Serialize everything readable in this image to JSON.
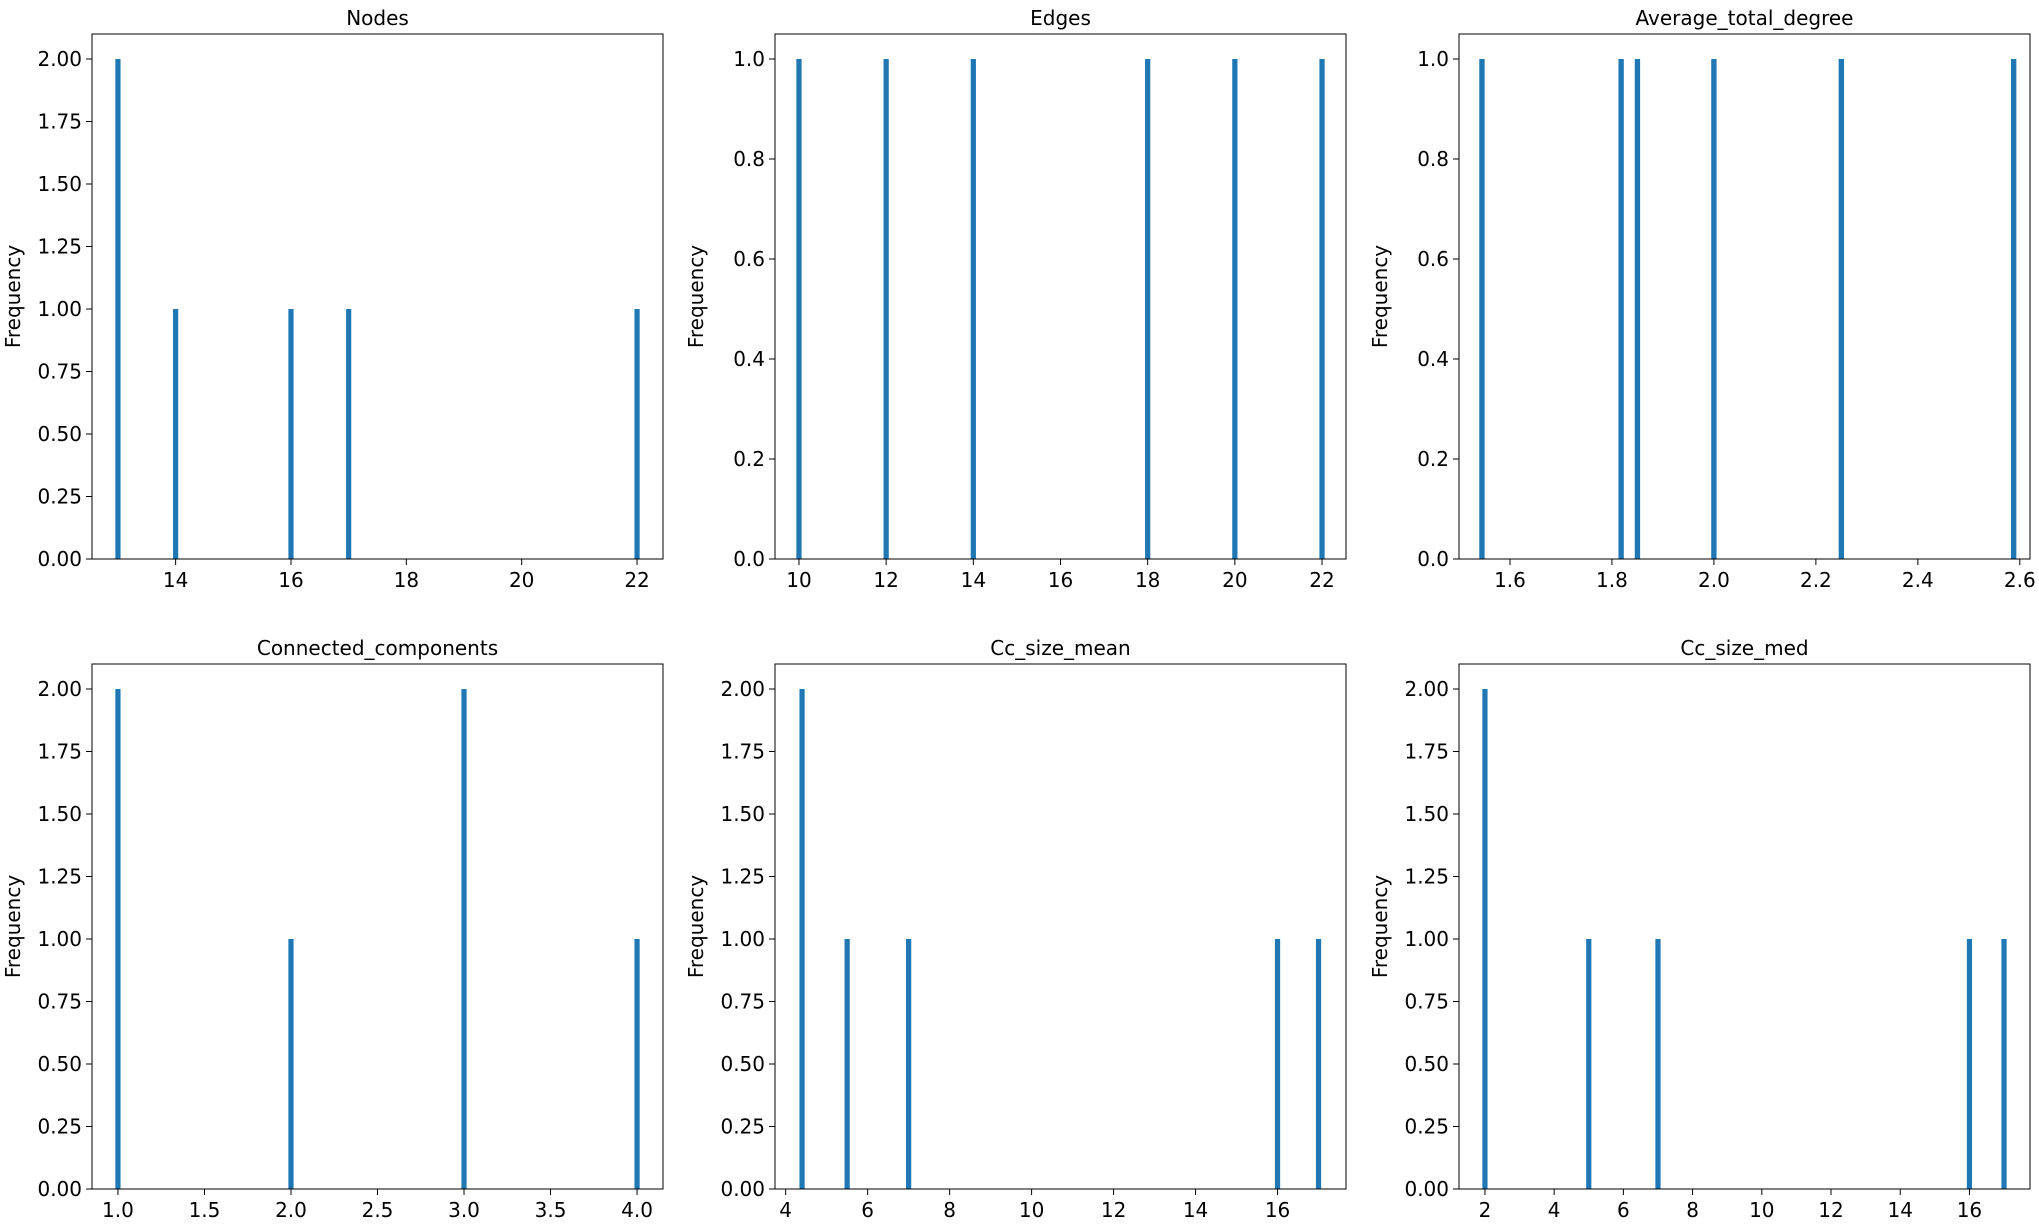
{
  "chart_data": [
    {
      "type": "bar",
      "title": "Nodes",
      "xlabel": "",
      "ylabel": "Frequency",
      "xlim": [
        12.55,
        22.45
      ],
      "ylim": [
        0,
        2.1
      ],
      "bar_width": 0.09,
      "x_ticks": [
        "14",
        "16",
        "18",
        "20",
        "22"
      ],
      "y_ticks": [
        "0.00",
        "0.25",
        "0.50",
        "0.75",
        "1.00",
        "1.25",
        "1.50",
        "1.75",
        "2.00"
      ],
      "bars": [
        {
          "x": 13,
          "value": 2
        },
        {
          "x": 14,
          "value": 1
        },
        {
          "x": 16,
          "value": 1
        },
        {
          "x": 17,
          "value": 1
        },
        {
          "x": 22,
          "value": 1
        }
      ]
    },
    {
      "type": "bar",
      "title": "Edges",
      "xlabel": "",
      "ylabel": "Frequency",
      "xlim": [
        9.45,
        22.55
      ],
      "ylim": [
        0,
        1.05
      ],
      "bar_width": 0.12,
      "x_ticks": [
        "10",
        "12",
        "14",
        "16",
        "18",
        "20",
        "22"
      ],
      "y_ticks": [
        "0.0",
        "0.2",
        "0.4",
        "0.6",
        "0.8",
        "1.0"
      ],
      "bars": [
        {
          "x": 10,
          "value": 1
        },
        {
          "x": 12,
          "value": 1
        },
        {
          "x": 14,
          "value": 1
        },
        {
          "x": 18,
          "value": 1
        },
        {
          "x": 20,
          "value": 1
        },
        {
          "x": 22,
          "value": 1
        }
      ]
    },
    {
      "type": "bar",
      "title": "Average_total_degree",
      "xlabel": "",
      "ylabel": "Frequency",
      "xlim": [
        1.5,
        2.62
      ],
      "ylim": [
        0,
        1.05
      ],
      "bar_width": 0.0105,
      "x_ticks": [
        "1.6",
        "1.8",
        "2.0",
        "2.2",
        "2.4",
        "2.6"
      ],
      "y_ticks": [
        "0.0",
        "0.2",
        "0.4",
        "0.6",
        "0.8",
        "1.0"
      ],
      "bars": [
        {
          "x": 1.545,
          "value": 1
        },
        {
          "x": 1.818,
          "value": 1
        },
        {
          "x": 1.85,
          "value": 1
        },
        {
          "x": 2.0,
          "value": 1
        },
        {
          "x": 2.25,
          "value": 1
        },
        {
          "x": 2.588,
          "value": 1
        }
      ]
    },
    {
      "type": "bar",
      "title": "Connected_components",
      "xlabel": "",
      "ylabel": "Frequency",
      "xlim": [
        0.85,
        4.15
      ],
      "ylim": [
        0,
        2.1
      ],
      "bar_width": 0.03,
      "x_ticks": [
        "1.0",
        "1.5",
        "2.0",
        "2.5",
        "3.0",
        "3.5",
        "4.0"
      ],
      "y_ticks": [
        "0.00",
        "0.25",
        "0.50",
        "0.75",
        "1.00",
        "1.25",
        "1.50",
        "1.75",
        "2.00"
      ],
      "bars": [
        {
          "x": 1,
          "value": 2
        },
        {
          "x": 2,
          "value": 1
        },
        {
          "x": 3,
          "value": 2
        },
        {
          "x": 4,
          "value": 1
        }
      ]
    },
    {
      "type": "bar",
      "title": "Cc_size_mean",
      "xlabel": "",
      "ylabel": "Frequency",
      "xlim": [
        3.74,
        17.67
      ],
      "ylim": [
        0,
        2.1
      ],
      "bar_width": 0.127,
      "x_ticks": [
        "4",
        "6",
        "8",
        "10",
        "12",
        "14",
        "16"
      ],
      "y_ticks": [
        "0.00",
        "0.25",
        "0.50",
        "0.75",
        "1.00",
        "1.25",
        "1.50",
        "1.75",
        "2.00"
      ],
      "bars": [
        {
          "x": 4.4,
          "value": 2
        },
        {
          "x": 5.5,
          "value": 1
        },
        {
          "x": 7.0,
          "value": 1
        },
        {
          "x": 16,
          "value": 1
        },
        {
          "x": 17,
          "value": 1
        }
      ]
    },
    {
      "type": "bar",
      "title": "Cc_size_med",
      "xlabel": "",
      "ylabel": "Frequency",
      "xlim": [
        1.25,
        17.75
      ],
      "ylim": [
        0,
        2.1
      ],
      "bar_width": 0.15,
      "x_ticks": [
        "2",
        "4",
        "6",
        "8",
        "10",
        "12",
        "14",
        "16"
      ],
      "y_ticks": [
        "0.00",
        "0.25",
        "0.50",
        "0.75",
        "1.00",
        "1.25",
        "1.50",
        "1.75",
        "2.00"
      ],
      "bars": [
        {
          "x": 2,
          "value": 2
        },
        {
          "x": 5,
          "value": 1
        },
        {
          "x": 7,
          "value": 1
        },
        {
          "x": 16,
          "value": 1
        },
        {
          "x": 17,
          "value": 1
        }
      ]
    }
  ],
  "colors": {
    "bar": "#1f77b4",
    "axis": "#000000"
  }
}
